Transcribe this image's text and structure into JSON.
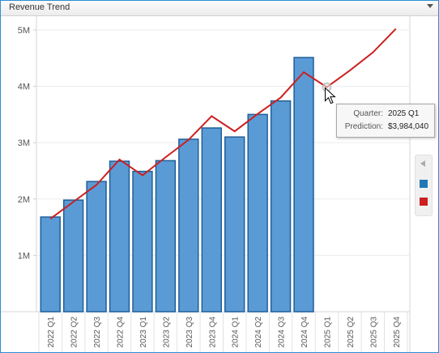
{
  "window": {
    "title": "Revenue Trend"
  },
  "tooltip": {
    "quarter_label": "Quarter:",
    "quarter_value": "2025 Q1",
    "prediction_label": "Prediction:",
    "prediction_value": "$3,984,040"
  },
  "legend": {
    "series": [
      {
        "color": "#1f77b4"
      },
      {
        "color": "#cc1f1f"
      }
    ]
  },
  "chart_data": {
    "type": "bar",
    "categories": [
      "2022 Q1",
      "2022 Q2",
      "2022 Q3",
      "2022 Q4",
      "2023 Q1",
      "2023 Q2",
      "2023 Q3",
      "2023 Q4",
      "2024 Q1",
      "2024 Q2",
      "2024 Q3",
      "2024 Q4",
      "2025 Q1",
      "2025 Q2",
      "2025 Q3",
      "2025 Q4"
    ],
    "y_ticks": [
      {
        "value": 1000000,
        "label": "1M"
      },
      {
        "value": 2000000,
        "label": "2M"
      },
      {
        "value": 3000000,
        "label": "3M"
      },
      {
        "value": 4000000,
        "label": "4M"
      },
      {
        "value": 5000000,
        "label": "5M"
      }
    ],
    "ylim": [
      0,
      5200000
    ],
    "series": [
      {
        "type": "bar",
        "color": "#5b9bd5",
        "stroke": "#1f5f99",
        "values": [
          1680000,
          1980000,
          2310000,
          2670000,
          2490000,
          2680000,
          3060000,
          3260000,
          3100000,
          3500000,
          3740000,
          4510000,
          null,
          null,
          null,
          null
        ]
      },
      {
        "type": "line",
        "color": "#cc1f1f",
        "values": [
          1650000,
          1950000,
          2250000,
          2700000,
          2420000,
          2740000,
          3050000,
          3470000,
          3200000,
          3510000,
          3800000,
          4250000,
          3984040,
          4280000,
          4600000,
          5020000
        ]
      }
    ],
    "highlight": {
      "series": 1,
      "index": 12
    },
    "grid": true
  }
}
